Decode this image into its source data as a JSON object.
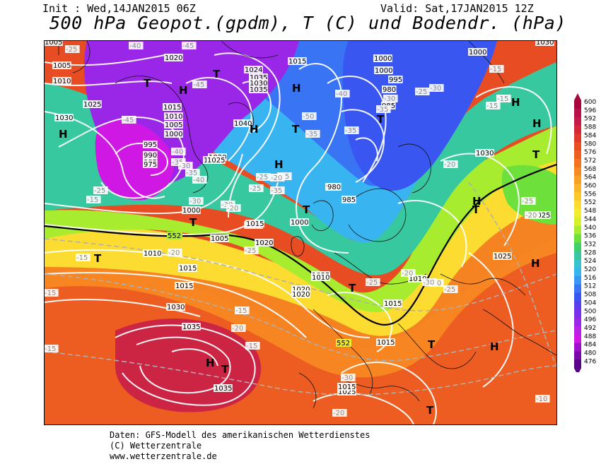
{
  "header": {
    "init": "Init : Wed,14JAN2015 06Z",
    "valid": "Valid: Sat,17JAN2015 12Z",
    "title": "500 hPa Geopot.(gpdm), T (C) und Bodendr. (hPa)"
  },
  "footer": {
    "line1": "Daten: GFS-Modell des amerikanischen Wetterdienstes",
    "line2": "(C) Wetterzentrale",
    "line3": "www.wetterzentrale.de"
  },
  "legend": {
    "values": [
      "600",
      "596",
      "592",
      "588",
      "584",
      "580",
      "576",
      "572",
      "568",
      "564",
      "560",
      "556",
      "552",
      "548",
      "544",
      "540",
      "536",
      "532",
      "528",
      "524",
      "520",
      "516",
      "512",
      "508",
      "504",
      "500",
      "496",
      "492",
      "488",
      "484",
      "480",
      "476"
    ],
    "colors": [
      "#a8063c",
      "#b8104a",
      "#c61a4a",
      "#d42836",
      "#e0382a",
      "#e84c22",
      "#ee6020",
      "#f27420",
      "#f68a22",
      "#f8a024",
      "#fab628",
      "#fcc82c",
      "#fcdc30",
      "#f2ec30",
      "#d8f02c",
      "#a8ec30",
      "#6ee03c",
      "#40d068",
      "#38c8a0",
      "#38c4cc",
      "#38b4f0",
      "#3896f4",
      "#3874f4",
      "#3a56f0",
      "#5a3eec",
      "#7a30ea",
      "#9a26e8",
      "#b820e8",
      "#d018e4",
      "#a010c8",
      "#7808a8",
      "#580488"
    ]
  },
  "map": {
    "pressure_labels": [
      "1020",
      "1015",
      "1005",
      "1010",
      "1025",
      "1030",
      "1015",
      "1010",
      "1005",
      "1000",
      "995",
      "990",
      "985",
      "975",
      "1024",
      "1035",
      "1030",
      "1035",
      "1040",
      "1000",
      "995",
      "980",
      "985",
      "1000",
      "1020",
      "1015",
      "1005",
      "1000",
      "1025",
      "1010",
      "990",
      "985",
      "980",
      "1015",
      "1005",
      "1010",
      "1020",
      "1025",
      "1015",
      "1010",
      "1030",
      "1035",
      "1035",
      "1025",
      "1000",
      "1030",
      "1015",
      "1025",
      "1010",
      "1015",
      "1015",
      "1015",
      "1020",
      "1000",
      "1025",
      "1030",
      "1020"
    ],
    "temp_labels": [
      "-25",
      "-45",
      "-40",
      "-45",
      "-45",
      "-40",
      "-35",
      "-30",
      "-35",
      "-40",
      "-30",
      "-25",
      "-35",
      "-50",
      "-35",
      "-30",
      "-35",
      "-30",
      "-25",
      "-30",
      "-40",
      "-35",
      "-25",
      "-20",
      "-25",
      "-20",
      "-20",
      "-15",
      "-15",
      "-15",
      "-15",
      "-15",
      "-20",
      "-25",
      "-30",
      "-20",
      "-25",
      "-20",
      "-20",
      "-15",
      "-15",
      "-10",
      "-20",
      "-25",
      "-30",
      "-15",
      "-25",
      "-25",
      "-15",
      "-20"
    ],
    "centers_H": [
      "H",
      "H",
      "H",
      "H",
      "H",
      "H",
      "H",
      "H",
      "H",
      "H",
      "H"
    ],
    "centers_T": [
      "T",
      "T",
      "T",
      "T",
      "T",
      "T",
      "T",
      "T",
      "T",
      "T",
      "T",
      "T",
      "T"
    ],
    "value_552": "552",
    "value_552b": "552"
  }
}
